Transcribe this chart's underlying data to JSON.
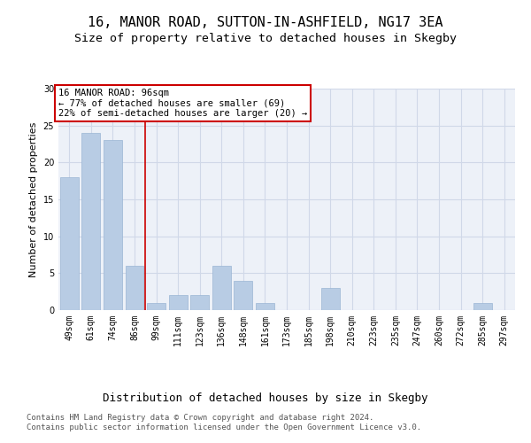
{
  "title_line1": "16, MANOR ROAD, SUTTON-IN-ASHFIELD, NG17 3EA",
  "title_line2": "Size of property relative to detached houses in Skegby",
  "xlabel": "Distribution of detached houses by size in Skegby",
  "ylabel": "Number of detached properties",
  "categories": [
    "49sqm",
    "61sqm",
    "74sqm",
    "86sqm",
    "99sqm",
    "111sqm",
    "123sqm",
    "136sqm",
    "148sqm",
    "161sqm",
    "173sqm",
    "185sqm",
    "198sqm",
    "210sqm",
    "223sqm",
    "235sqm",
    "247sqm",
    "260sqm",
    "272sqm",
    "285sqm",
    "297sqm"
  ],
  "values": [
    18,
    24,
    23,
    6,
    1,
    2,
    2,
    6,
    4,
    1,
    0,
    0,
    3,
    0,
    0,
    0,
    0,
    0,
    0,
    1,
    0
  ],
  "bar_color": "#b8cce4",
  "bar_edge_color": "#9ab5d4",
  "vline_index": 4,
  "vline_color": "#cc0000",
  "annotation_box_text": "16 MANOR ROAD: 96sqm\n← 77% of detached houses are smaller (69)\n22% of semi-detached houses are larger (20) →",
  "annotation_box_color": "#cc0000",
  "annotation_box_bg": "#ffffff",
  "ylim": [
    0,
    30
  ],
  "yticks": [
    0,
    5,
    10,
    15,
    20,
    25,
    30
  ],
  "grid_color": "#d0d8e8",
  "bg_color": "#edf1f8",
  "footer_text": "Contains HM Land Registry data © Crown copyright and database right 2024.\nContains public sector information licensed under the Open Government Licence v3.0.",
  "title_fontsize": 11,
  "subtitle_fontsize": 9.5,
  "xlabel_fontsize": 9,
  "ylabel_fontsize": 8,
  "tick_fontsize": 7,
  "footer_fontsize": 6.5
}
